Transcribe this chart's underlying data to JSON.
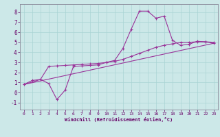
{
  "xlabel": "Windchill (Refroidissement éolien,°C)",
  "bg_color": "#cce8e8",
  "grid_color": "#aad4d4",
  "line_color": "#993399",
  "xlim": [
    -0.5,
    23.5
  ],
  "ylim": [
    -1.7,
    8.8
  ],
  "xticks": [
    0,
    1,
    2,
    3,
    4,
    5,
    6,
    7,
    8,
    9,
    10,
    11,
    12,
    13,
    14,
    15,
    16,
    17,
    18,
    19,
    20,
    21,
    22,
    23
  ],
  "yticks": [
    -1,
    0,
    1,
    2,
    3,
    4,
    5,
    6,
    7,
    8
  ],
  "curve1_x": [
    0,
    1,
    2,
    3,
    4,
    5,
    6,
    7,
    8,
    9,
    10,
    11,
    12,
    13,
    14,
    15,
    16,
    17,
    18,
    19,
    20,
    21,
    22,
    23
  ],
  "curve1_y": [
    0.8,
    1.2,
    1.3,
    0.9,
    -0.7,
    0.25,
    2.6,
    2.65,
    2.7,
    2.75,
    3.0,
    3.2,
    4.4,
    6.3,
    8.1,
    8.1,
    7.4,
    7.6,
    5.2,
    4.7,
    4.8,
    5.1,
    5.05,
    4.9
  ],
  "curve2_x": [
    0,
    2,
    3,
    4,
    5,
    6,
    7,
    8,
    9,
    10,
    11,
    12,
    13,
    14,
    15,
    16,
    17,
    18,
    19,
    20,
    21,
    22,
    23
  ],
  "curve2_y": [
    0.8,
    1.3,
    2.6,
    2.65,
    2.7,
    2.75,
    2.8,
    2.85,
    2.9,
    3.0,
    3.1,
    3.3,
    3.6,
    3.9,
    4.2,
    4.5,
    4.7,
    4.85,
    5.0,
    5.0,
    5.05,
    5.05,
    5.0
  ],
  "line_x": [
    0,
    23
  ],
  "line_y": [
    0.8,
    4.9
  ]
}
